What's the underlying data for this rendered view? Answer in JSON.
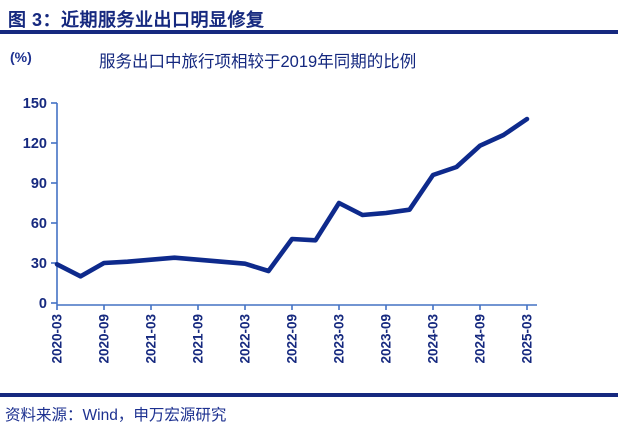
{
  "header": {
    "title": "图 3：近期服务业出口明显修复"
  },
  "chart": {
    "unit_label": "(%)",
    "title": "服务出口中旅行项相较于2019年同期的比例"
  },
  "footer": {
    "source": "资料来源：Wind，申万宏源研究"
  },
  "colors": {
    "navy_text": "#16297f",
    "line": "#0e2a8c",
    "axis": "#4472c4"
  },
  "chart_data": {
    "type": "line",
    "title": "服务出口中旅行项相较于2019年同期的比例",
    "ylabel": "(%)",
    "x": [
      "2020-03",
      "2020-06",
      "2020-09",
      "2020-12",
      "2021-03",
      "2021-06",
      "2021-09",
      "2021-12",
      "2022-03",
      "2022-06",
      "2022-09",
      "2022-12",
      "2023-03",
      "2023-06",
      "2023-09",
      "2023-12",
      "2024-03",
      "2024-06",
      "2024-09",
      "2024-12",
      "2025-03"
    ],
    "values": [
      29,
      20,
      30,
      31,
      32.5,
      34,
      32.5,
      31,
      29.5,
      24,
      48,
      47,
      75,
      66,
      67.5,
      70,
      96,
      102,
      118,
      126,
      138
    ],
    "x_tick_labels": [
      "2020-03",
      "2020-09",
      "2021-03",
      "2021-09",
      "2022-03",
      "2022-09",
      "2023-03",
      "2023-09",
      "2024-03",
      "2024-09",
      "2025-03"
    ],
    "ylim": [
      0,
      150
    ],
    "yticks": [
      0,
      30,
      60,
      90,
      120,
      150
    ],
    "grid": false,
    "legend_position": "none",
    "line_color": "#0e2a8c"
  }
}
